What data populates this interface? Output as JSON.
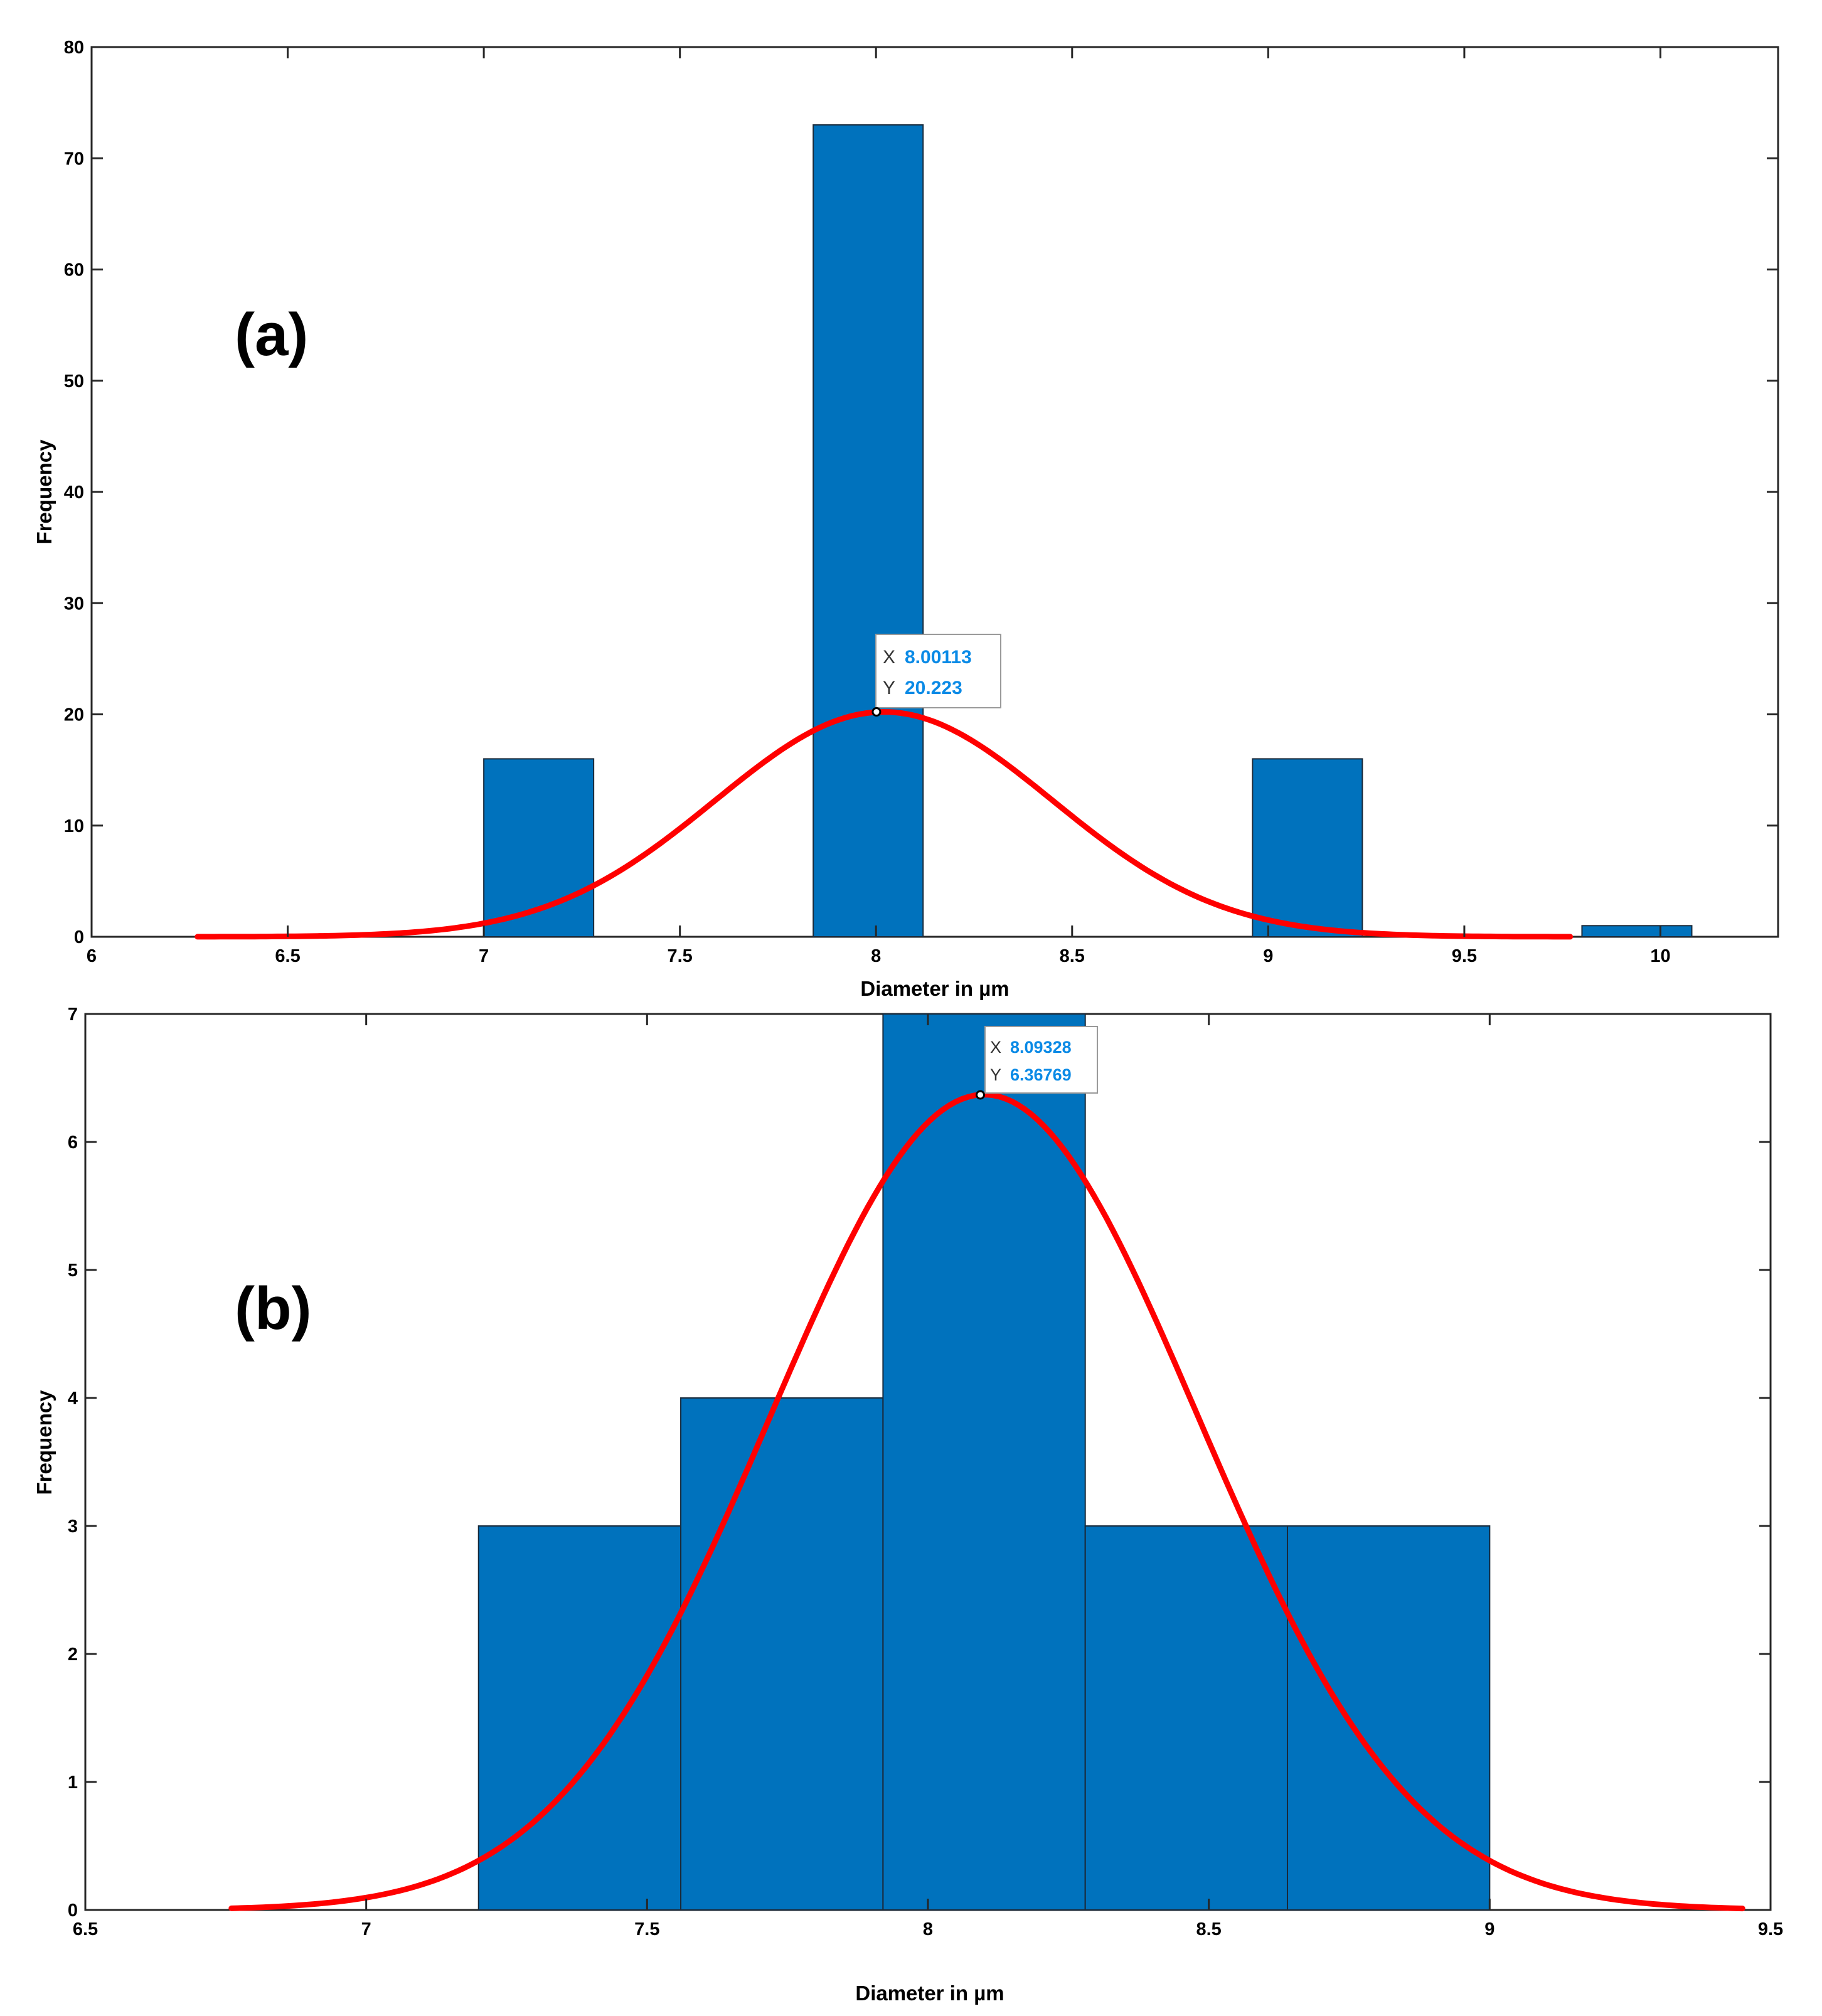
{
  "colors": {
    "bar": "#0072BD",
    "bar_edge": "#1a2a3a",
    "fit": "#FF0000",
    "tip_value": "#0A8AE6",
    "axis": "#262626"
  },
  "chart_data": [
    {
      "type": "bar",
      "panel_label": "(a)",
      "xlabel": "Diameter in µm",
      "ylabel": "Frequency",
      "xlim": [
        6,
        10.3
      ],
      "ylim": [
        0,
        80
      ],
      "x_ticks": [
        "6",
        "6.5",
        "7",
        "7.5",
        "8",
        "8.5",
        "9",
        "9.5",
        "10"
      ],
      "y_ticks": [
        "0",
        "10",
        "20",
        "30",
        "40",
        "50",
        "60",
        "70",
        "80"
      ],
      "bins": [
        {
          "start": 7.0,
          "end": 7.28,
          "count": 16
        },
        {
          "start": 7.84,
          "end": 8.12,
          "count": 73
        },
        {
          "start": 8.96,
          "end": 9.24,
          "count": 16
        },
        {
          "start": 9.8,
          "end": 10.08,
          "count": 1
        }
      ],
      "fit": {
        "type": "normal",
        "mean": 8.02,
        "peak": 20.22,
        "sd": 0.43,
        "x_range": [
          6.27,
          9.77
        ]
      },
      "datatip": {
        "x_label": "X",
        "x_value": "8.00113",
        "y_label": "Y",
        "y_value": "20.223",
        "x": 8.00113,
        "y": 20.223
      }
    },
    {
      "type": "bar",
      "panel_label": "(b)",
      "xlabel": "Diameter in µm",
      "ylabel": "Frequency",
      "xlim": [
        6.5,
        9.5
      ],
      "ylim": [
        0,
        7
      ],
      "x_ticks": [
        "6.5",
        "7",
        "7.5",
        "8",
        "8.5",
        "9",
        "9.5"
      ],
      "y_ticks": [
        "0",
        "1",
        "2",
        "3",
        "4",
        "5",
        "6",
        "7"
      ],
      "bins": [
        {
          "start": 7.2,
          "end": 7.56,
          "count": 3
        },
        {
          "start": 7.56,
          "end": 7.92,
          "count": 4
        },
        {
          "start": 7.92,
          "end": 8.28,
          "count": 7
        },
        {
          "start": 8.28,
          "end": 8.64,
          "count": 3
        },
        {
          "start": 8.64,
          "end": 9.0,
          "count": 3
        }
      ],
      "fit": {
        "type": "normal",
        "mean": 8.1,
        "peak": 6.37,
        "sd": 0.38,
        "x_range": [
          6.76,
          9.45
        ]
      },
      "datatip": {
        "x_label": "X",
        "x_value": "8.09328",
        "y_label": "Y",
        "y_value": "6.36769",
        "x": 8.09328,
        "y": 6.36769
      }
    }
  ]
}
